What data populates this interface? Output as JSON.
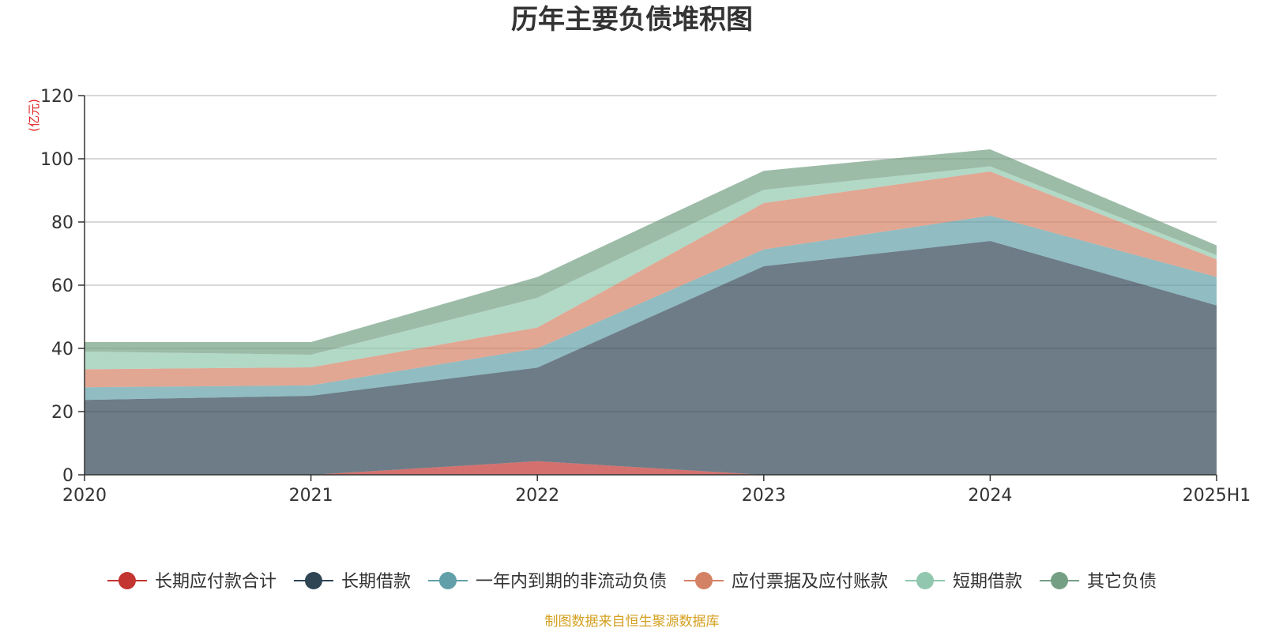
{
  "chart_data": {
    "type": "area",
    "stacked": true,
    "title": "历年主要负债堆积图",
    "ylabel": "(亿元)",
    "xlabel": "",
    "categories": [
      "2020",
      "2021",
      "2022",
      "2023",
      "2024",
      "2025H1"
    ],
    "ylim": [
      0,
      120
    ],
    "yticks": [
      0,
      20,
      40,
      60,
      80,
      100,
      120
    ],
    "grid": true,
    "legend_position": "bottom",
    "series": [
      {
        "name": "长期应付款合计",
        "color": "#c23531",
        "values": [
          0,
          0,
          4.3,
          0,
          0,
          0
        ]
      },
      {
        "name": "长期借款",
        "color": "#2f4554",
        "values": [
          23.7,
          25.0,
          29.6,
          66.0,
          74.0,
          53.6
        ]
      },
      {
        "name": "一年内到期的非流动负债",
        "color": "#61a0a8",
        "values": [
          4.0,
          3.3,
          6.1,
          5.3,
          8.0,
          9.0
        ]
      },
      {
        "name": "应付票据及应付账款",
        "color": "#d48265",
        "values": [
          5.7,
          5.7,
          6.6,
          14.7,
          14.0,
          5.6
        ]
      },
      {
        "name": "短期借款",
        "color": "#91c7ae",
        "values": [
          5.6,
          4.0,
          9.4,
          4.2,
          1.6,
          1.3
        ]
      },
      {
        "name": "其它负债",
        "color": "#749f83",
        "values": [
          3.0,
          4.0,
          6.6,
          6.0,
          5.4,
          3.1
        ]
      }
    ]
  },
  "footer": {
    "source_text": "制图数据来自恒生聚源数据库"
  }
}
